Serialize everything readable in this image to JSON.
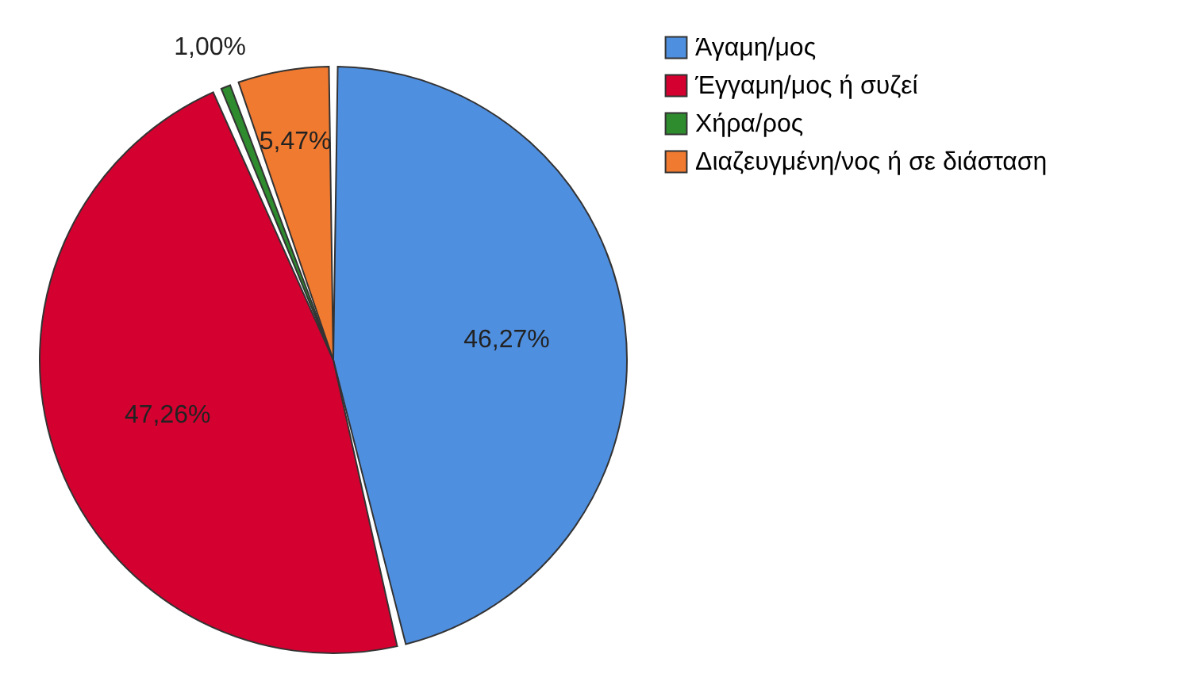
{
  "chart_data": {
    "type": "pie",
    "categories": [
      "Άγαμη/μος",
      "Έγγαμη/μος ή συζεί",
      "Χήρα/ρος",
      "Διαζευγμένη/νος ή σε διάσταση"
    ],
    "values": [
      46.27,
      47.26,
      1.0,
      5.47
    ],
    "colors": [
      "#4f8fe0",
      "#d4002f",
      "#2e8b2e",
      "#f07a30"
    ],
    "value_labels": [
      "46,27%",
      "47,26%",
      "1,00%",
      "5,47%"
    ],
    "legend": "top right"
  }
}
